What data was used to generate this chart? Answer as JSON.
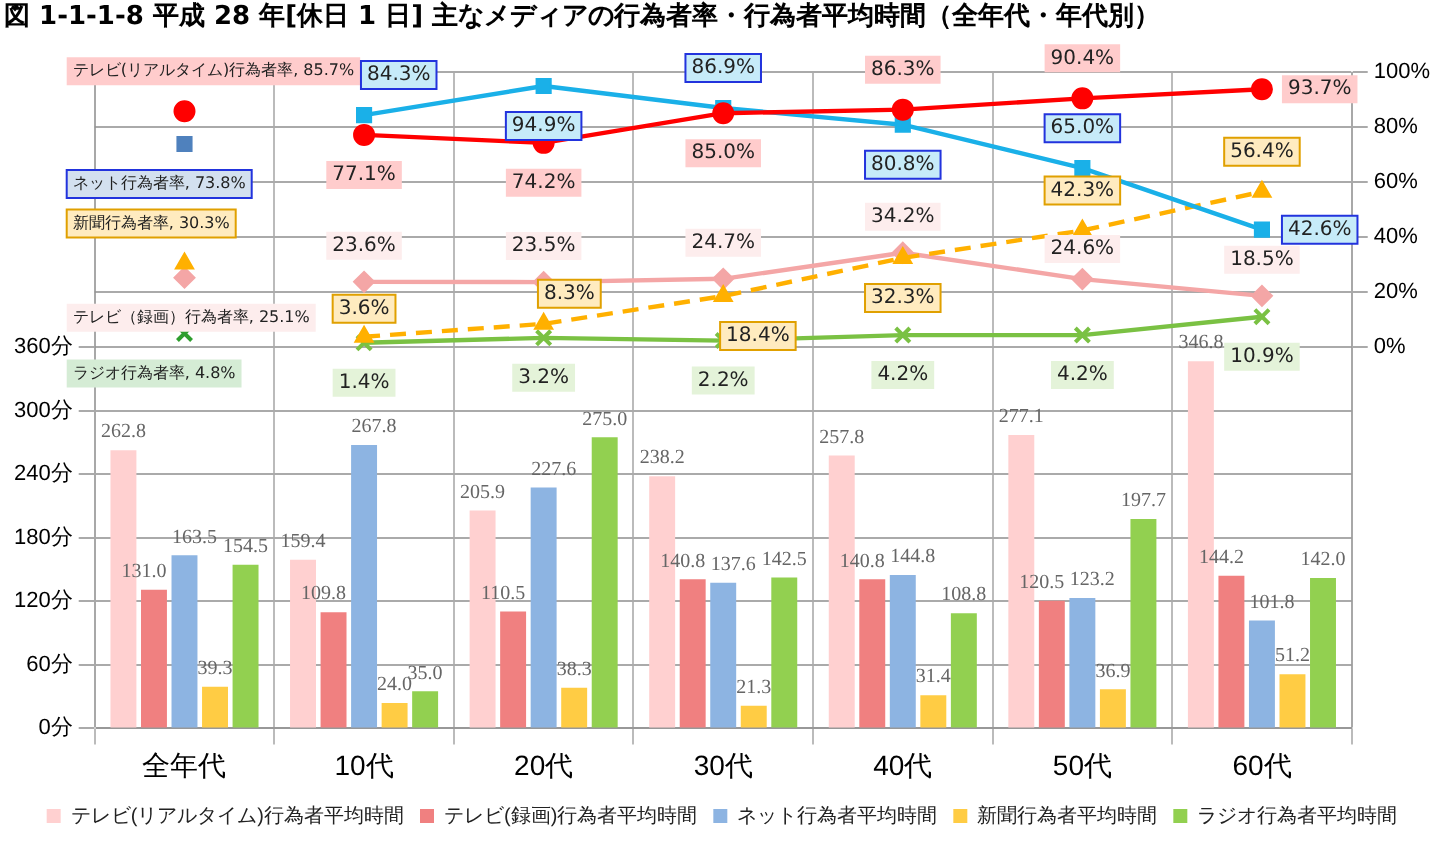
{
  "chart_data": {
    "type": "bar",
    "title": "図 1-1-1-8  平成 28 年[休日 1 日] 主なメディアの行為者率・行為者平均時間（全年代・年代別）",
    "categories": [
      "全年代",
      "10代",
      "20代",
      "30代",
      "40代",
      "50代",
      "60代"
    ],
    "ylim": [
      0,
      620
    ],
    "yticks": [
      {
        "value": 0,
        "label": "0分"
      },
      {
        "value": 60,
        "label": "60分"
      },
      {
        "value": 120,
        "label": "120分"
      },
      {
        "value": 180,
        "label": "180分"
      },
      {
        "value": 240,
        "label": "240分"
      },
      {
        "value": 300,
        "label": "300分"
      },
      {
        "value": 360,
        "label": "360分"
      }
    ],
    "y2lim": [
      -139,
      100
    ],
    "y2ticks": [
      {
        "value": 0,
        "label": "0%"
      },
      {
        "value": 20,
        "label": "20%"
      },
      {
        "value": 40,
        "label": "40%"
      },
      {
        "value": 60,
        "label": "60%"
      },
      {
        "value": 80,
        "label": "80%"
      },
      {
        "value": 100,
        "label": "100%"
      }
    ],
    "grid": true,
    "legend": "bottom",
    "series": [
      {
        "name": "テレビ(リアルタイム)行為者平均時間",
        "color": "#ffd0d0",
        "values": [
          262.8,
          159.4,
          205.9,
          238.2,
          257.8,
          277.1,
          346.8
        ],
        "value_labels": [
          "262.8",
          "159.4",
          "205.9",
          "238.2",
          "257.8",
          "277.1",
          "346.8"
        ]
      },
      {
        "name": "テレビ(録画)行為者平均時間",
        "color": "#f08080",
        "values": [
          131.0,
          109.8,
          110.5,
          140.8,
          140.8,
          120.5,
          144.2
        ],
        "value_labels": [
          "131.0",
          "109.8",
          "110.5",
          "140.8",
          "140.8",
          "120.5",
          "144.2"
        ]
      },
      {
        "name": "ネット行為者平均時間",
        "color": "#8db4e2",
        "values": [
          163.5,
          267.8,
          227.6,
          137.6,
          144.8,
          123.2,
          101.8
        ],
        "value_labels": [
          "163.5",
          "267.8",
          "227.6",
          "137.6",
          "144.8",
          "123.2",
          "101.8"
        ]
      },
      {
        "name": "新聞行為者平均時間",
        "color": "#ffcc44",
        "values": [
          39.3,
          24.0,
          38.3,
          21.3,
          31.4,
          36.9,
          51.2
        ],
        "value_labels": [
          "39.3",
          "24.0",
          "38.3",
          "21.3",
          "31.4",
          "36.9",
          "51.2"
        ]
      },
      {
        "name": "ラジオ行為者平均時間",
        "color": "#92d050",
        "values": [
          154.5,
          35.0,
          275.0,
          142.5,
          108.8,
          197.7,
          142.0
        ],
        "value_labels": [
          "154.5",
          "35.0",
          "275.0",
          "142.5",
          "108.8",
          "197.7",
          "142.0"
        ]
      },
      {
        "type": "scatter",
        "axis": "y2",
        "marker": "circle",
        "color": "#ff0000",
        "values": [
          85.7,
          null,
          null,
          null,
          null,
          null,
          null
        ],
        "value_labels": [
          "テレビ(リアルタイム)行為者率, 85.7%",
          null,
          null,
          null,
          null,
          null,
          null
        ]
      },
      {
        "type": "line",
        "axis": "y2",
        "marker": "circle",
        "line_style": "solid",
        "color": "#ff0000",
        "values": [
          null,
          77.1,
          74.2,
          85.0,
          86.3,
          90.4,
          93.7
        ],
        "value_labels": [
          null,
          "77.1%",
          "74.2%",
          "85.0%",
          "86.3%",
          "90.4%",
          "93.7%"
        ]
      },
      {
        "type": "scatter",
        "axis": "y2",
        "marker": "square",
        "color": "#4f81bd",
        "values": [
          73.8,
          null,
          null,
          null,
          null,
          null,
          null
        ],
        "value_labels": [
          "ネット行為者率, 73.8%",
          null,
          null,
          null,
          null,
          null,
          null
        ]
      },
      {
        "type": "line",
        "axis": "y2",
        "marker": "square",
        "line_style": "solid",
        "color": "#1ab0e8",
        "values": [
          null,
          84.3,
          94.9,
          86.9,
          80.8,
          65.0,
          42.6
        ],
        "value_labels": [
          null,
          "84.3%",
          "94.9%",
          "86.9%",
          "80.8%",
          "65.0%",
          "42.6%"
        ]
      },
      {
        "type": "scatter",
        "axis": "y2",
        "marker": "triangle",
        "color": "#ffb000",
        "values": [
          30.3,
          null,
          null,
          null,
          null,
          null,
          null
        ],
        "value_labels": [
          "新聞行為者率, 30.3%",
          null,
          null,
          null,
          null,
          null,
          null
        ]
      },
      {
        "type": "line",
        "axis": "y2",
        "marker": "triangle",
        "line_style": "dashed",
        "color": "#ffb000",
        "values": [
          null,
          3.6,
          8.3,
          18.4,
          32.3,
          42.3,
          56.4
        ],
        "value_labels": [
          null,
          "3.6%",
          "8.3%",
          "18.4%",
          "32.3%",
          "42.3%",
          "56.4%"
        ]
      },
      {
        "type": "scatter",
        "axis": "y2",
        "marker": "diamond",
        "color": "#f4a6a6",
        "values": [
          25.1,
          null,
          null,
          null,
          null,
          null,
          null
        ],
        "value_labels": [
          "テレビ（録画）行為者率, 25.1%",
          null,
          null,
          null,
          null,
          null,
          null
        ]
      },
      {
        "type": "line",
        "axis": "y2",
        "marker": "diamond",
        "line_style": "solid",
        "color": "#f4a6a6",
        "values": [
          null,
          23.6,
          23.5,
          24.7,
          34.2,
          24.6,
          18.5
        ],
        "value_labels": [
          null,
          "23.6%",
          "23.5%",
          "24.7%",
          "34.2%",
          "24.6%",
          "18.5%"
        ]
      },
      {
        "type": "scatter",
        "axis": "y2",
        "marker": "cross",
        "color": "#2e9e2e",
        "values": [
          4.8,
          null,
          null,
          null,
          null,
          null,
          null
        ],
        "value_labels": [
          "ラジオ行為者率, 4.8%",
          null,
          null,
          null,
          null,
          null,
          null
        ]
      },
      {
        "type": "line",
        "axis": "y2",
        "marker": "cross",
        "line_style": "solid",
        "color": "#7ac143",
        "values": [
          null,
          1.4,
          3.2,
          2.2,
          4.2,
          4.2,
          10.9
        ],
        "value_labels": [
          null,
          "1.4%",
          "3.2%",
          "2.2%",
          "4.2%",
          "4.2%",
          "10.9%"
        ]
      }
    ]
  }
}
